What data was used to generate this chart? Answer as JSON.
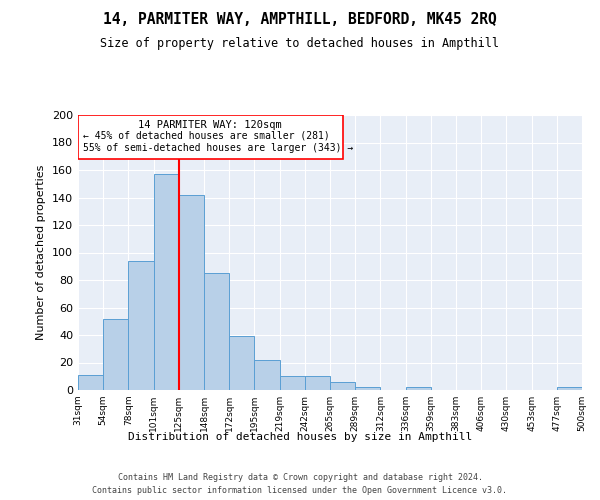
{
  "title1": "14, PARMITER WAY, AMPTHILL, BEDFORD, MK45 2RQ",
  "title2": "Size of property relative to detached houses in Ampthill",
  "xlabel": "Distribution of detached houses by size in Ampthill",
  "ylabel": "Number of detached properties",
  "footnote1": "Contains HM Land Registry data © Crown copyright and database right 2024.",
  "footnote2": "Contains public sector information licensed under the Open Government Licence v3.0.",
  "annotation_line1": "14 PARMITER WAY: 120sqm",
  "annotation_line2": "← 45% of detached houses are smaller (281)",
  "annotation_line3": "55% of semi-detached houses are larger (343) →",
  "tick_labels": [
    "31sqm",
    "54sqm",
    "78sqm",
    "101sqm",
    "125sqm",
    "148sqm",
    "172sqm",
    "195sqm",
    "219sqm",
    "242sqm",
    "265sqm",
    "289sqm",
    "312sqm",
    "336sqm",
    "359sqm",
    "383sqm",
    "406sqm",
    "430sqm",
    "453sqm",
    "477sqm",
    "500sqm"
  ],
  "bar_values": [
    11,
    52,
    94,
    157,
    142,
    85,
    39,
    22,
    10,
    10,
    6,
    2,
    0,
    2,
    0,
    0,
    0,
    0,
    0,
    2
  ],
  "bar_color": "#b8d0e8",
  "bar_edge_color": "#5a9fd4",
  "red_line_x": 3.5,
  "plot_bg_color": "#e8eef7",
  "ylim": [
    0,
    200
  ],
  "yticks": [
    0,
    20,
    40,
    60,
    80,
    100,
    120,
    140,
    160,
    180,
    200
  ]
}
